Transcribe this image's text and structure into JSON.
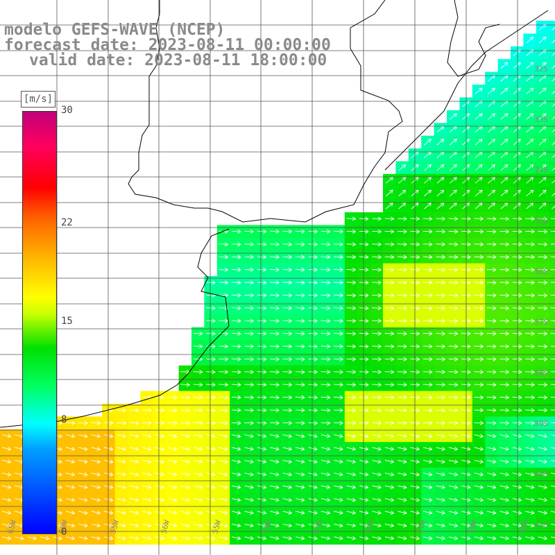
{
  "title": {
    "line1": "modelo GEFS-WAVE (NCEP)",
    "line2": "forecast date: 2023-08-11 00:00:00",
    "line3": "valid date: 2023-08-11 18:00:00"
  },
  "colorbar": {
    "unit": "[m/s]",
    "ticks": [
      {
        "label": "30",
        "value": 30
      },
      {
        "label": "22",
        "value": 22
      },
      {
        "label": "15",
        "value": 15
      },
      {
        "label": "8",
        "value": 8
      },
      {
        "label": "0",
        "value": 0
      }
    ],
    "range": [
      0,
      30
    ],
    "colors": [
      "#0000ff",
      "#00a0ff",
      "#00ffff",
      "#00ff60",
      "#00e000",
      "#c8ff00",
      "#ffff00",
      "#ffb000",
      "#ff6000",
      "#ff0000",
      "#ff0060",
      "#c0007a"
    ]
  },
  "map": {
    "lat_labels": [
      "32S",
      "33S",
      "34S",
      "35S",
      "36S",
      "37S",
      "38S",
      "39S",
      "40S",
      "41S"
    ],
    "lon_labels": [
      "65W",
      "60W",
      "55W",
      "56W",
      "55W",
      "54W",
      "53W",
      "52W",
      "51W",
      "50W",
      "49W"
    ],
    "land_color": "#ffffff",
    "coast_color": "#000000",
    "grid_color": "#555555",
    "arrow_color": "#ffffff"
  }
}
